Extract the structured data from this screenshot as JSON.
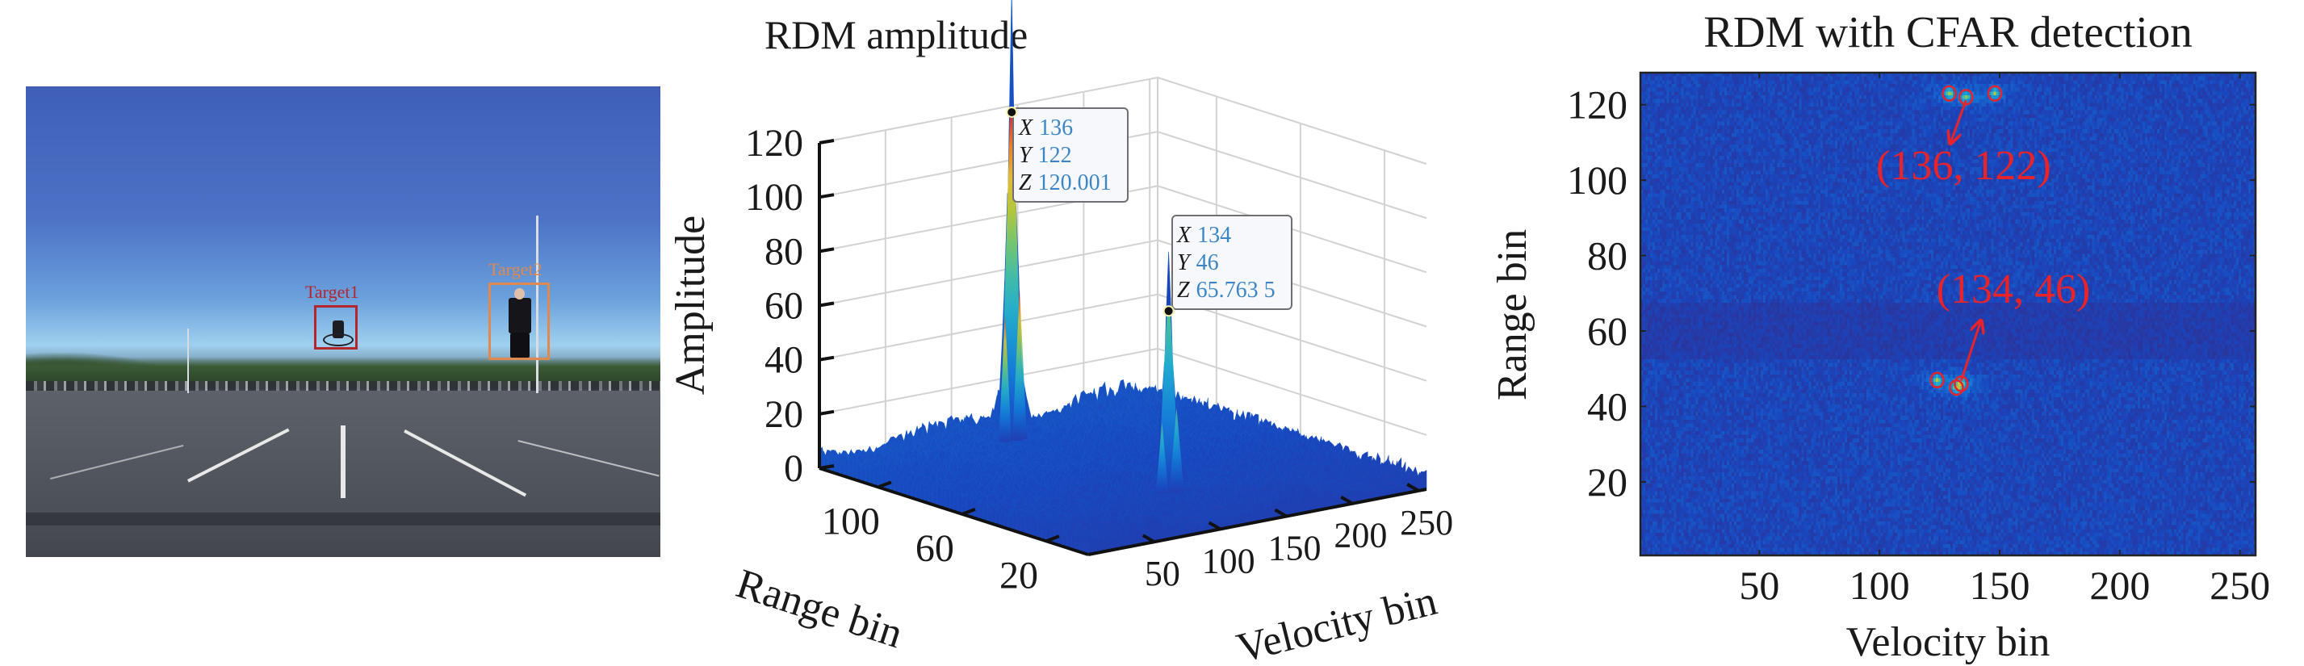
{
  "photo": {
    "targets": [
      {
        "label": "Target1",
        "color": "#b5262b",
        "object": "cyclist"
      },
      {
        "label": "Target2",
        "color": "#e0894f",
        "object": "pedestrian"
      }
    ]
  },
  "chart_data": [
    {
      "type": "surface3d",
      "title": "RDM amplitude",
      "xlabel": "Velocity bin",
      "ylabel": "Range bin",
      "zlabel": "Amplitude",
      "xlim": [
        0,
        256
      ],
      "ylim": [
        0,
        128
      ],
      "zlim": [
        0,
        120
      ],
      "xticks": [
        "50",
        "100",
        "150",
        "200",
        "250"
      ],
      "yticks": [
        "20",
        "60",
        "100"
      ],
      "zticks": [
        "0",
        "20",
        "40",
        "60",
        "80",
        "100",
        "120"
      ],
      "noise_floor": 8,
      "grid": true,
      "colormap": "parula-like",
      "peaks": [
        {
          "x": 136,
          "y": 122,
          "z": 120.001
        },
        {
          "x": 134,
          "y": 46,
          "z": 65.7635
        }
      ],
      "datatips": [
        {
          "x_label": "X",
          "x": "136",
          "y_label": "Y",
          "y": "122",
          "z_label": "Z",
          "z": "120.001"
        },
        {
          "x_label": "X",
          "x": "134",
          "y_label": "Y",
          "y": "46",
          "z_label": "Z",
          "z": "65.763 5"
        }
      ]
    },
    {
      "type": "heatmap",
      "title": "RDM with CFAR detection",
      "xlabel": "Velocity bin",
      "ylabel": "Range bin",
      "xlim": [
        0.5,
        256.5
      ],
      "ylim": [
        0.5,
        128.5
      ],
      "xticks": [
        "50",
        "100",
        "150",
        "200",
        "250"
      ],
      "yticks": [
        "20",
        "40",
        "60",
        "80",
        "100",
        "120"
      ],
      "colormap": "parula-like",
      "detections": [
        {
          "x": 129,
          "y": 123
        },
        {
          "x": 136,
          "y": 122
        },
        {
          "x": 148,
          "y": 123
        },
        {
          "x": 124,
          "y": 47
        },
        {
          "x": 132,
          "y": 45
        },
        {
          "x": 134,
          "y": 46
        }
      ],
      "annotations": [
        {
          "text": "(136, 122)",
          "x": 136,
          "y": 122,
          "color": "#e8232a"
        },
        {
          "text": "(134, 46)",
          "x": 134,
          "y": 46,
          "color": "#e8232a"
        }
      ]
    }
  ]
}
